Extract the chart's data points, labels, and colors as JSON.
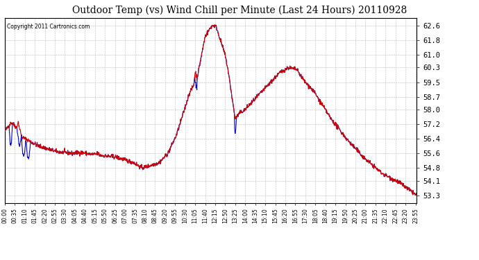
{
  "title": "Outdoor Temp (vs) Wind Chill per Minute (Last 24 Hours) 20110928",
  "copyright_text": "Copyright 2011 Cartronics.com",
  "y_ticks": [
    53.3,
    54.1,
    54.8,
    55.6,
    56.4,
    57.2,
    58.0,
    58.7,
    59.5,
    60.3,
    61.0,
    61.8,
    62.6
  ],
  "y_min": 52.9,
  "y_max": 63.0,
  "background_color": "#ffffff",
  "plot_bg_color": "#ffffff",
  "grid_color": "#aaaaaa",
  "line_color_red": "#cc0000",
  "line_color_blue": "#0000cc",
  "title_fontsize": 10,
  "x_tick_labels": [
    "00:00",
    "00:35",
    "01:10",
    "01:45",
    "02:20",
    "02:55",
    "03:30",
    "04:05",
    "04:40",
    "05:15",
    "05:50",
    "06:25",
    "07:00",
    "07:35",
    "08:10",
    "08:45",
    "09:20",
    "09:55",
    "10:30",
    "11:05",
    "11:40",
    "12:15",
    "12:50",
    "13:25",
    "14:00",
    "14:35",
    "15:10",
    "15:45",
    "16:20",
    "16:55",
    "17:30",
    "18:05",
    "18:40",
    "19:15",
    "19:50",
    "20:25",
    "21:00",
    "21:35",
    "22:10",
    "22:45",
    "23:20",
    "23:55"
  ]
}
